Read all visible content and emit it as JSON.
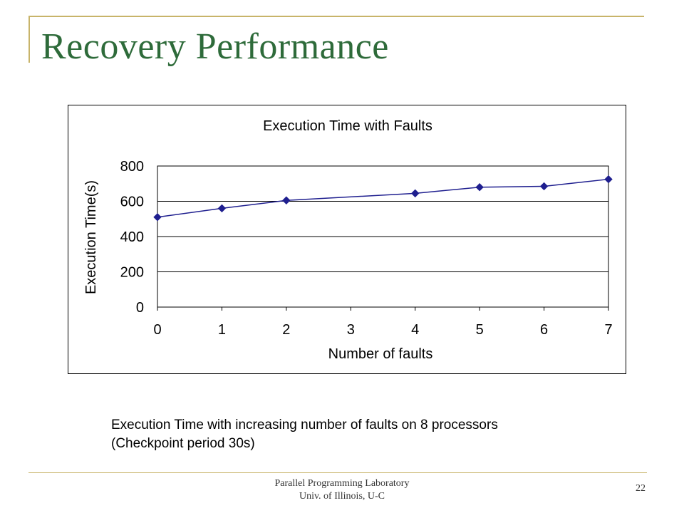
{
  "slide": {
    "title": "Recovery Performance",
    "caption_line1": "Execution Time with increasing number of faults on 8 processors",
    "caption_line2": "(Checkpoint period 30s)",
    "footer_line1": "Parallel Programming Laboratory",
    "footer_line2": "Univ. of Illinois, U-C",
    "page_number": "22"
  },
  "colors": {
    "title": "#2e6b3a",
    "accent_rule": "#c8b46a",
    "series": "#1f1f8f"
  },
  "chart_data": {
    "type": "scatter",
    "title": "Execution Time with Faults",
    "xlabel": "Number of faults",
    "ylabel": "Execution Time(s)",
    "xlim": [
      0,
      7
    ],
    "ylim": [
      0,
      800
    ],
    "x_ticks": [
      "0",
      "1",
      "2",
      "3",
      "4",
      "5",
      "6",
      "7"
    ],
    "y_ticks": [
      "0",
      "200",
      "400",
      "600",
      "800"
    ],
    "grid": "horizontal",
    "legend": "none",
    "series": [
      {
        "x": [
          0,
          1,
          2,
          4,
          5,
          6,
          7
        ],
        "y": [
          510,
          560,
          605,
          645,
          680,
          685,
          725
        ]
      }
    ]
  }
}
